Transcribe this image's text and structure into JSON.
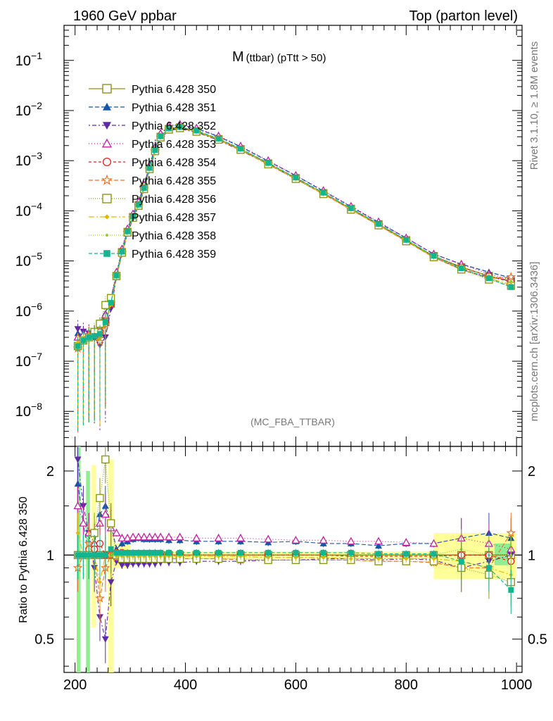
{
  "header": {
    "left": "1960 GeV ppbar",
    "right": "Top (parton level)"
  },
  "plot_title": {
    "main": "M",
    "sub": "(ttbar) (pTtt > 50)"
  },
  "side_text": {
    "rivet": "Rivet 3.1.10, ≥ 1.8M events",
    "mcplots": "mcplots.cern.ch [arXiv:1306.3436]"
  },
  "analysis_label": "(MC_FBA_TTBAR)",
  "ratio_ylabel": "Ratio to Pythia 6.428 350",
  "chart_data": [
    {
      "type": "line",
      "yscale": "log",
      "xlim": [
        180,
        1010
      ],
      "ylim": [
        2e-09,
        0.5
      ],
      "yticks": [
        {
          "value": 1e-08,
          "base": "10",
          "exp": "−8"
        },
        {
          "value": 1e-07,
          "base": "10",
          "exp": "−7"
        },
        {
          "value": 1e-06,
          "base": "10",
          "exp": "−6"
        },
        {
          "value": 1e-05,
          "base": "10",
          "exp": "−5"
        },
        {
          "value": 0.0001,
          "base": "10",
          "exp": "−4"
        },
        {
          "value": 0.001,
          "base": "10",
          "exp": "−3"
        },
        {
          "value": 0.01,
          "base": "10",
          "exp": "−2"
        },
        {
          "value": 0.1,
          "base": "10",
          "exp": "−1"
        }
      ],
      "x": [
        205,
        215,
        225,
        235,
        245,
        255,
        265,
        275,
        285,
        295,
        305,
        315,
        325,
        335,
        345,
        355,
        370,
        390,
        420,
        460,
        500,
        550,
        600,
        650,
        700,
        750,
        800,
        850,
        900,
        950,
        990
      ],
      "reference": [
        2e-07,
        2.6e-07,
        3e-07,
        3.2e-07,
        3.5e-07,
        6e-07,
        1.4e-06,
        5e-06,
        1.5e-05,
        3.8e-05,
        7.5e-05,
        0.00013,
        0.00028,
        0.0007,
        0.0016,
        0.003,
        0.0043,
        0.0046,
        0.0039,
        0.0027,
        0.0017,
        0.00088,
        0.00045,
        0.000225,
        0.00011,
        5.4e-05,
        2.6e-05,
        1.25e-05,
        7.5e-06,
        5e-06,
        4e-06
      ],
      "series": [
        {
          "name": "Pythia 6.428 350",
          "color": "#8f8f1f",
          "marker": "square-open",
          "dash": "",
          "ratio": [
            1.0,
            1.0,
            1.0,
            1.0,
            1.0,
            1.0,
            1.0,
            1.0,
            1.0,
            1.0,
            1.0,
            1.0,
            1.0,
            1.0,
            1.0,
            1.0,
            1.0,
            1.0,
            1.0,
            1.0,
            1.0,
            1.0,
            1.0,
            1.0,
            1.0,
            1.0,
            1.0,
            1.0,
            1.0,
            1.0,
            1.0
          ]
        },
        {
          "name": "Pythia 6.428 351",
          "color": "#1656a8",
          "marker": "triangle-up",
          "dash": "6,3",
          "ratio": [
            1.8,
            1.3,
            1.0,
            1.1,
            1.4,
            1.5,
            1.3,
            1.05,
            1.1,
            1.12,
            1.14,
            1.15,
            1.14,
            1.14,
            1.14,
            1.14,
            1.13,
            1.13,
            1.12,
            1.12,
            1.12,
            1.11,
            1.12,
            1.1,
            1.1,
            1.08,
            1.1,
            1.1,
            1.15,
            1.2,
            1.15
          ]
        },
        {
          "name": "Pythia 6.428 352",
          "color": "#5e2aa8",
          "marker": "triangle-down",
          "dash": "2,3,6,3",
          "ratio": [
            2.2,
            1.5,
            1.2,
            0.9,
            0.6,
            0.5,
            0.8,
            0.95,
            0.92,
            0.92,
            0.93,
            0.93,
            0.93,
            0.93,
            0.93,
            0.94,
            0.94,
            0.94,
            0.95,
            0.95,
            0.95,
            0.96,
            0.96,
            0.97,
            0.97,
            0.96,
            0.97,
            0.96,
            0.9,
            0.95,
            1.0
          ]
        },
        {
          "name": "Pythia 6.428 353",
          "color": "#c1209e",
          "marker": "triangle-up-open",
          "dash": "1,3",
          "ratio": [
            1.5,
            1.3,
            1.2,
            1.1,
            1.3,
            1.4,
            1.25,
            1.2,
            1.15,
            1.15,
            1.16,
            1.16,
            1.16,
            1.16,
            1.16,
            1.16,
            1.16,
            1.16,
            1.15,
            1.15,
            1.15,
            1.14,
            1.13,
            1.13,
            1.12,
            1.12,
            1.11,
            1.1,
            1.15,
            1.1,
            1.05
          ]
        },
        {
          "name": "Pythia 6.428 354",
          "color": "#e0201c",
          "marker": "circle-open",
          "dash": "4,3",
          "ratio": [
            1.0,
            1.0,
            1.05,
            1.05,
            1.1,
            1.0,
            1.0,
            1.02,
            1.02,
            1.01,
            1.01,
            1.01,
            1.01,
            1.01,
            1.01,
            1.0,
            1.0,
            1.0,
            1.0,
            1.0,
            1.0,
            1.0,
            1.0,
            1.0,
            0.99,
            0.99,
            0.99,
            0.99,
            1.0,
            1.0,
            0.95
          ]
        },
        {
          "name": "Pythia 6.428 355",
          "color": "#f26f22",
          "marker": "star-open",
          "dash": "6,3",
          "ratio": [
            0.9,
            1.0,
            1.1,
            1.0,
            0.7,
            0.9,
            1.0,
            0.98,
            0.97,
            0.97,
            0.97,
            0.97,
            0.97,
            0.97,
            0.97,
            0.97,
            0.97,
            0.97,
            0.97,
            0.97,
            0.96,
            0.96,
            0.96,
            0.96,
            0.96,
            0.95,
            0.95,
            0.94,
            0.9,
            0.9,
            1.2
          ]
        },
        {
          "name": "Pythia 6.428 356",
          "color": "#8a9a1a",
          "marker": "square-open",
          "dash": "1,2",
          "ratio": [
            1.0,
            1.0,
            1.0,
            1.2,
            1.6,
            2.2,
            1.3,
            1.0,
            0.97,
            0.97,
            0.97,
            0.97,
            0.97,
            0.97,
            0.97,
            0.97,
            0.97,
            0.97,
            0.97,
            0.97,
            0.97,
            0.96,
            0.96,
            0.96,
            0.96,
            0.95,
            0.95,
            0.95,
            0.9,
            0.85,
            0.8
          ]
        },
        {
          "name": "Pythia 6.428 357",
          "color": "#e0b800",
          "marker": "diamond",
          "dash": "8,3,2,3",
          "ratio": [
            1.2,
            1.0,
            1.0,
            1.0,
            0.8,
            1.0,
            1.0,
            0.99,
            0.99,
            0.99,
            0.99,
            0.99,
            0.99,
            0.99,
            0.99,
            0.99,
            0.99,
            0.99,
            0.99,
            0.99,
            0.99,
            0.98,
            0.98,
            0.98,
            0.97,
            0.97,
            0.97,
            0.97,
            0.95,
            0.9,
            0.85
          ]
        },
        {
          "name": "Pythia 6.428 358",
          "color": "#9acd32",
          "marker": "dot",
          "dash": "1,2",
          "ratio": [
            1.0,
            1.0,
            1.0,
            1.0,
            1.0,
            1.0,
            1.0,
            1.0,
            1.0,
            1.0,
            1.0,
            1.0,
            1.0,
            1.0,
            1.0,
            1.0,
            1.0,
            1.0,
            1.0,
            1.0,
            1.0,
            1.0,
            1.0,
            1.0,
            1.0,
            1.0,
            1.0,
            1.0,
            1.05,
            1.0,
            1.0
          ]
        },
        {
          "name": "Pythia 6.428 359",
          "color": "#12b58e",
          "marker": "square",
          "dash": "5,3",
          "ratio": [
            1.0,
            1.0,
            1.0,
            1.0,
            1.0,
            1.0,
            1.05,
            1.02,
            1.02,
            1.02,
            1.02,
            1.02,
            1.02,
            1.02,
            1.02,
            1.02,
            1.02,
            1.02,
            1.02,
            1.02,
            1.02,
            1.02,
            1.02,
            1.02,
            1.02,
            1.01,
            1.01,
            1.01,
            0.95,
            0.9,
            0.75
          ]
        }
      ]
    },
    {
      "type": "line",
      "yscale": "log",
      "xlim": [
        180,
        1010
      ],
      "ylim": [
        0.38,
        2.45
      ],
      "ylabel": "Ratio to Pythia 6.428 350",
      "yticks": [
        {
          "value": 0.5,
          "label": "0.5"
        },
        {
          "value": 1,
          "label": "1"
        },
        {
          "value": 2,
          "label": "2"
        }
      ],
      "xticks": [
        200,
        400,
        600,
        800,
        1000
      ],
      "reference_band": [
        {
          "x": [
            203,
            210
          ],
          "low": 0.38,
          "high": 2.45,
          "color": "#90ee90"
        },
        {
          "x": [
            220,
            227
          ],
          "low": 0.38,
          "high": 2.0,
          "color": "#90ee90"
        },
        {
          "x": [
            230,
            238
          ],
          "low": 0.55,
          "high": 2.1,
          "color": "#ffff99"
        },
        {
          "x": [
            260,
            270
          ],
          "low": 0.38,
          "high": 2.2,
          "color": "#ffff99"
        },
        {
          "x": [
            270,
            300
          ],
          "low": 0.9,
          "high": 1.1,
          "color": "#ffff99"
        },
        {
          "x": [
            300,
            850
          ],
          "low": 0.97,
          "high": 1.03,
          "color": "#ffff99"
        },
        {
          "x": [
            850,
            1000
          ],
          "low": 0.82,
          "high": 1.2,
          "color": "#ffff99"
        },
        {
          "x": [
            960,
            990
          ],
          "low": 0.92,
          "high": 1.1,
          "color": "#90ee90"
        }
      ]
    }
  ]
}
